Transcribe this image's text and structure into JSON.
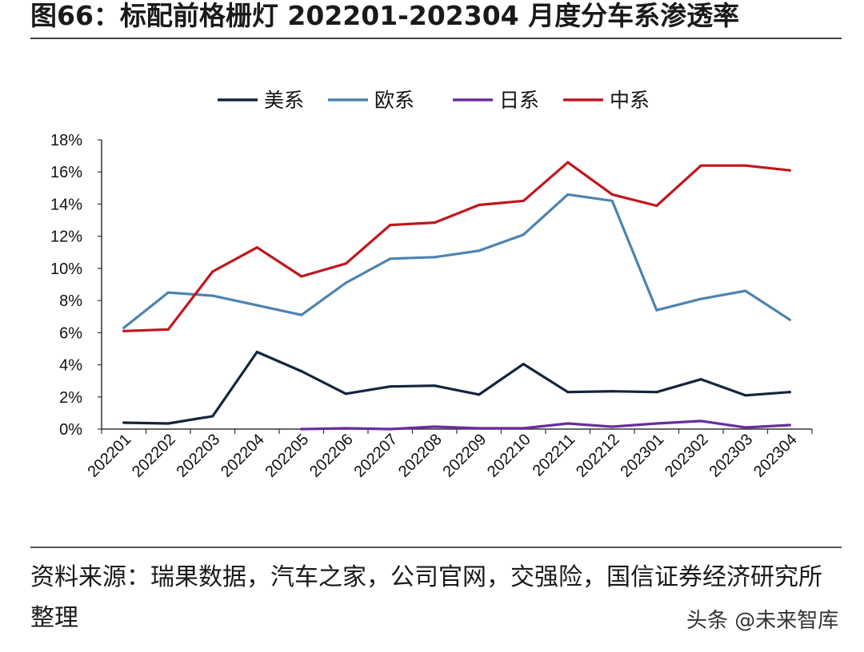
{
  "figure": {
    "title": "图66：标配前格栅灯 202201-202304 月度分车系渗透率",
    "source": "资料来源：瑞果数据，汽车之家，公司官网，交强险，国信证券经济研究所整理",
    "watermark": "头条 @未来智库"
  },
  "chart_data": {
    "type": "line",
    "title": "",
    "xlabel": "",
    "ylabel": "",
    "categories": [
      "202201",
      "202202",
      "202203",
      "202204",
      "202205",
      "202206",
      "202207",
      "202208",
      "202209",
      "202210",
      "202211",
      "202212",
      "202301",
      "202302",
      "202303",
      "202304"
    ],
    "ylim": [
      0,
      18
    ],
    "yticks": [
      0,
      2,
      4,
      6,
      8,
      10,
      12,
      14,
      16,
      18
    ],
    "ytick_labels": [
      "0%",
      "2%",
      "4%",
      "6%",
      "8%",
      "10%",
      "12%",
      "14%",
      "16%",
      "18%"
    ],
    "grid": false,
    "legend_position": "top-center",
    "series": [
      {
        "name": "美系",
        "color": "#13243d",
        "values": [
          0.4,
          0.35,
          0.8,
          4.8,
          3.6,
          2.2,
          2.65,
          2.7,
          2.15,
          4.05,
          2.3,
          2.35,
          2.3,
          3.1,
          2.1,
          2.3
        ]
      },
      {
        "name": "欧系",
        "color": "#4d83b0",
        "values": [
          6.3,
          8.5,
          8.3,
          7.7,
          7.1,
          9.1,
          10.6,
          10.7,
          11.1,
          12.1,
          14.6,
          14.2,
          7.4,
          8.1,
          8.6,
          6.8
        ]
      },
      {
        "name": "日系",
        "color": "#6a2d9e",
        "values": [
          null,
          null,
          null,
          null,
          0.0,
          0.05,
          0.0,
          0.15,
          0.05,
          0.05,
          0.35,
          0.15,
          0.35,
          0.5,
          0.1,
          0.25
        ]
      },
      {
        "name": "中系",
        "color": "#c0161c",
        "values": [
          6.1,
          6.2,
          9.8,
          11.3,
          9.5,
          10.3,
          12.7,
          12.85,
          13.95,
          14.2,
          16.6,
          14.6,
          13.9,
          16.4,
          16.4,
          16.1
        ]
      }
    ]
  }
}
